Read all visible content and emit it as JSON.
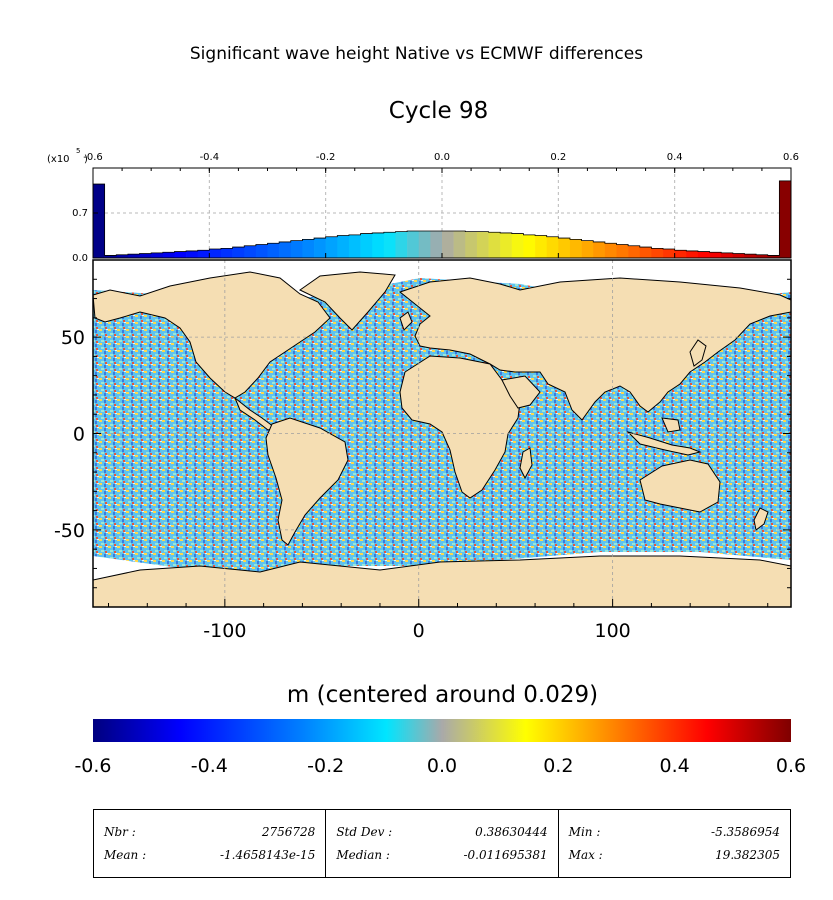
{
  "title": "Significant wave height Native vs ECMWF differences",
  "subtitle": "Cycle 98",
  "colors": {
    "land": "#f5deb3",
    "frame": "#000000",
    "grid": "#b0b0b0",
    "colormap": [
      "#00007f",
      "#0000ff",
      "#0080ff",
      "#00e5ff",
      "#a9a9a9",
      "#ffff00",
      "#ff8000",
      "#ff0000",
      "#7f0000"
    ]
  },
  "chart_data": [
    {
      "type": "bar",
      "name": "histogram",
      "x_ticks": [
        -0.6,
        -0.4,
        -0.2,
        0.0,
        0.2,
        0.4,
        0.6
      ],
      "x_tick_labels": [
        "-0.6",
        "-0.4",
        "-0.2",
        "0.0",
        "0.2",
        "0.4",
        "0.6"
      ],
      "y_ticks": [
        0.0,
        0.7
      ],
      "y_tick_labels": [
        "0.0",
        "0.7"
      ],
      "y_scale_label": "(x10",
      "y_scale_exponent": "5",
      "ylim": [
        0,
        1.4
      ],
      "xlim": [
        -0.6,
        0.6
      ],
      "grid": true,
      "bins": {
        "centers": [
          -0.59,
          -0.57,
          -0.55,
          -0.53,
          -0.51,
          -0.49,
          -0.47,
          -0.45,
          -0.43,
          -0.41,
          -0.39,
          -0.37,
          -0.35,
          -0.33,
          -0.31,
          -0.29,
          -0.27,
          -0.25,
          -0.23,
          -0.21,
          -0.19,
          -0.17,
          -0.15,
          -0.13,
          -0.11,
          -0.09,
          -0.07,
          -0.05,
          -0.03,
          -0.01,
          0.01,
          0.03,
          0.05,
          0.07,
          0.09,
          0.11,
          0.13,
          0.15,
          0.17,
          0.19,
          0.21,
          0.23,
          0.25,
          0.27,
          0.29,
          0.31,
          0.33,
          0.35,
          0.37,
          0.39,
          0.41,
          0.43,
          0.45,
          0.47,
          0.49,
          0.51,
          0.53,
          0.55,
          0.57,
          0.59
        ],
        "values": [
          1.15,
          0.04,
          0.05,
          0.06,
          0.07,
          0.08,
          0.09,
          0.1,
          0.11,
          0.12,
          0.14,
          0.15,
          0.17,
          0.19,
          0.21,
          0.23,
          0.25,
          0.27,
          0.29,
          0.31,
          0.33,
          0.35,
          0.36,
          0.38,
          0.39,
          0.4,
          0.41,
          0.42,
          0.42,
          0.42,
          0.42,
          0.42,
          0.41,
          0.41,
          0.4,
          0.39,
          0.38,
          0.36,
          0.35,
          0.33,
          0.31,
          0.29,
          0.27,
          0.25,
          0.23,
          0.21,
          0.19,
          0.17,
          0.15,
          0.14,
          0.12,
          0.11,
          0.1,
          0.09,
          0.08,
          0.07,
          0.06,
          0.05,
          0.04,
          1.2
        ]
      }
    },
    {
      "type": "heatmap",
      "name": "world-map",
      "x_ticks": [
        -100,
        0,
        100
      ],
      "x_tick_labels": [
        "-100",
        "0",
        "100"
      ],
      "y_ticks": [
        50,
        0,
        -50
      ],
      "y_tick_labels": [
        "50",
        "0",
        "-50"
      ],
      "xlim": [
        -168,
        192
      ],
      "ylim": [
        -90,
        90
      ],
      "grid": true,
      "colorbar": {
        "label": "m (centered around 0.029)",
        "range": [
          -0.6,
          0.6
        ],
        "ticks": [
          -0.6,
          -0.4,
          -0.2,
          0.0,
          0.2,
          0.4,
          0.6
        ],
        "tick_labels": [
          "-0.6",
          "-0.4",
          "-0.2",
          "0.0",
          "0.2",
          "0.4",
          "0.6"
        ]
      }
    }
  ],
  "stats": {
    "nbr_label": "Nbr :",
    "nbr_value": "2756728",
    "mean_label": "Mean :",
    "mean_value": "-1.4658143e-15",
    "std_label": "Std Dev :",
    "std_value": "0.38630444",
    "median_label": "Median :",
    "median_value": "-0.011695381",
    "min_label": "Min :",
    "min_value": "-5.3586954",
    "max_label": "Max :",
    "max_value": "19.382305"
  }
}
